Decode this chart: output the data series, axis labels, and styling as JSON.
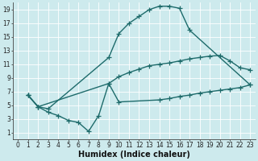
{
  "bg_color": "#cdeaed",
  "grid_color": "#ffffff",
  "line_color": "#1e6b6b",
  "line_width": 1.0,
  "marker": "+",
  "marker_size": 4,
  "marker_lw": 0.9,
  "xlabel": "Humidex (Indice chaleur)",
  "xlabel_fontsize": 7,
  "tick_fontsize": 5.5,
  "xlim": [
    -0.5,
    23.5
  ],
  "ylim": [
    0,
    20
  ],
  "xticks": [
    0,
    1,
    2,
    3,
    4,
    5,
    6,
    7,
    8,
    9,
    10,
    11,
    12,
    13,
    14,
    15,
    16,
    17,
    18,
    19,
    20,
    21,
    22,
    23
  ],
  "yticks": [
    1,
    3,
    5,
    7,
    9,
    11,
    13,
    15,
    17,
    19
  ],
  "curve_top_x": [
    1,
    2,
    3,
    9,
    10,
    11,
    12,
    13,
    14,
    15,
    16,
    17,
    23
  ],
  "curve_top_y": [
    6.5,
    4.8,
    4.5,
    12.0,
    15.5,
    17.0,
    18.0,
    19.0,
    19.5,
    19.5,
    19.2,
    16.0,
    8.0
  ],
  "curve_mid_x": [
    1,
    2,
    9,
    10,
    11,
    12,
    13,
    14,
    15,
    16,
    17,
    18,
    19,
    20,
    21,
    22,
    23
  ],
  "curve_mid_y": [
    6.5,
    4.8,
    8.2,
    9.2,
    9.8,
    10.3,
    10.8,
    11.0,
    11.2,
    11.5,
    11.8,
    12.0,
    12.2,
    12.3,
    11.5,
    10.5,
    10.2
  ],
  "curve_bot_x": [
    1,
    2,
    3,
    4,
    5,
    6,
    7,
    8,
    9,
    10,
    14,
    15,
    16,
    17,
    18,
    19,
    20,
    21,
    22,
    23
  ],
  "curve_bot_y": [
    6.5,
    4.8,
    4.0,
    3.5,
    2.8,
    2.5,
    1.2,
    3.5,
    8.2,
    5.5,
    5.8,
    6.0,
    6.3,
    6.5,
    6.8,
    7.0,
    7.2,
    7.4,
    7.6,
    8.0
  ]
}
